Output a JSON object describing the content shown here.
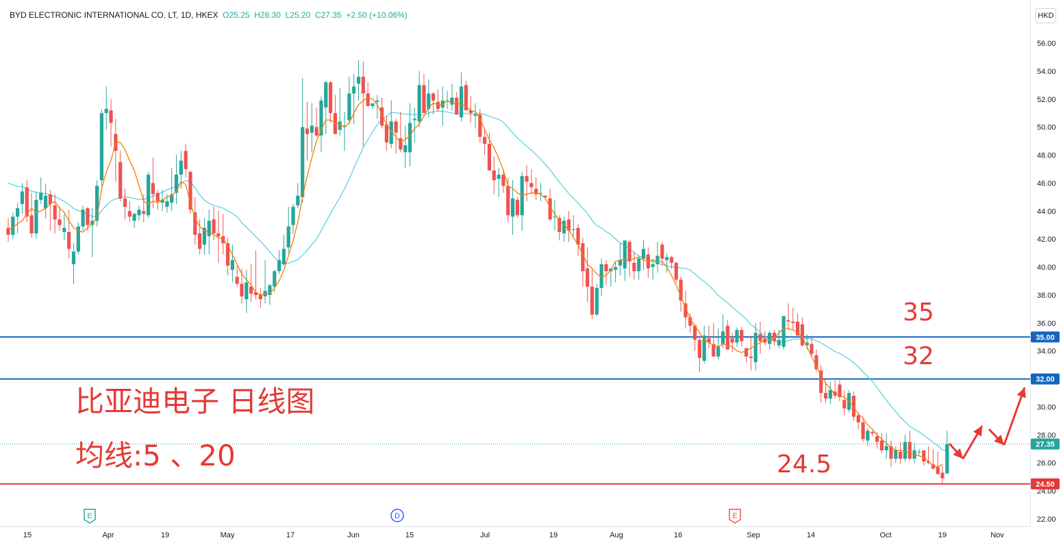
{
  "legend": {
    "symbol": "BYD ELECTRONIC INTERNATIONAL CO. LT, 1D, HKEX",
    "open": "O25.25",
    "high": "H28.30",
    "low": "L25.20",
    "close": "C27.35",
    "change": "+2.50 (+10.06%)"
  },
  "currency": "HKD",
  "colors": {
    "up": "#26a69a",
    "down": "#ef5350",
    "ma5": "#f57c00",
    "ma20": "#4dd0e1",
    "line_blue": "#1565c0",
    "line_red": "#e53935",
    "annotation": "#e53935",
    "last_price": "#1565c0"
  },
  "chart_data": {
    "type": "candlestick",
    "y_ticks": [
      "56.00",
      "54.00",
      "52.00",
      "50.00",
      "48.00",
      "46.00",
      "44.00",
      "42.00",
      "40.00",
      "38.00",
      "36.00",
      "34.00",
      "32.00",
      "30.00",
      "28.00",
      "26.00",
      "24.00",
      "22.00"
    ],
    "x_ticks": [
      "15",
      "Apr",
      "19",
      "May",
      "17",
      "Jun",
      "15",
      "Jul",
      "19",
      "Aug",
      "16",
      "Sep",
      "14",
      "Oct",
      "19",
      "Nov"
    ],
    "ylim": [
      22,
      56
    ],
    "ohlc": [
      [
        42.8,
        43.5,
        41.8,
        42.3
      ],
      [
        42.3,
        43.9,
        42,
        43.6
      ],
      [
        43.6,
        44.6,
        42.4,
        44.2
      ],
      [
        44.5,
        46,
        43.8,
        45.4
      ],
      [
        45.7,
        46.2,
        43.2,
        43.6
      ],
      [
        43.7,
        45.3,
        42.1,
        42.4
      ],
      [
        42.4,
        45.4,
        42,
        44.8
      ],
      [
        44.8,
        46.4,
        44.5,
        45.3
      ],
      [
        44.2,
        45.9,
        43.5,
        45.1
      ],
      [
        45.2,
        45.5,
        42.6,
        44.5
      ],
      [
        44.4,
        45.2,
        42.4,
        43.4
      ],
      [
        43.4,
        44.3,
        42.6,
        43
      ],
      [
        42.5,
        43.8,
        41.9,
        42.8
      ],
      [
        42.5,
        44.1,
        40.6,
        41.3
      ],
      [
        40.2,
        41.7,
        38.8,
        41.1
      ],
      [
        41.1,
        43.2,
        40.9,
        42.9
      ],
      [
        42.9,
        44.4,
        42.6,
        44.1
      ],
      [
        44.2,
        44.3,
        42.6,
        43
      ],
      [
        43,
        44.2,
        40.7,
        43.3
      ],
      [
        43.3,
        46.2,
        42.9,
        45.8
      ],
      [
        46.2,
        51.3,
        45.8,
        51
      ],
      [
        51,
        52.9,
        49.8,
        51.3
      ],
      [
        51.2,
        52,
        48.6,
        50.3
      ],
      [
        49.5,
        50.6,
        46.1,
        48.3
      ],
      [
        47.5,
        48.3,
        44.7,
        44.9
      ],
      [
        44.9,
        45.6,
        43.4,
        44.3
      ],
      [
        44,
        44.7,
        43.2,
        43.6
      ],
      [
        43.3,
        43.9,
        42.8,
        43.8
      ],
      [
        43.7,
        44.4,
        43.3,
        44.1
      ],
      [
        44,
        45.2,
        43.2,
        43.8
      ],
      [
        43.7,
        46.8,
        43.5,
        46.6
      ],
      [
        46,
        47.8,
        44.2,
        45.2
      ],
      [
        45.3,
        45.5,
        44.1,
        44.7
      ],
      [
        44.6,
        45.5,
        44,
        44.8
      ],
      [
        44.3,
        45.2,
        43.9,
        44.7
      ],
      [
        44.6,
        47.1,
        44,
        45.2
      ],
      [
        45.3,
        48,
        44.5,
        46.6
      ],
      [
        46.6,
        48.3,
        45.6,
        47.6
      ],
      [
        48.3,
        48.8,
        46.4,
        47
      ],
      [
        46.8,
        46.9,
        43.8,
        44.1
      ],
      [
        43.9,
        45,
        41.6,
        42.3
      ],
      [
        42.4,
        43.4,
        40.9,
        41.3
      ],
      [
        41.6,
        43.5,
        40.9,
        42.8
      ],
      [
        42.2,
        44.1,
        40.9,
        43.3
      ],
      [
        43.4,
        44.3,
        41.9,
        42.4
      ],
      [
        42.4,
        44,
        40.3,
        42.2
      ],
      [
        42.2,
        43.8,
        40.9,
        41.7
      ],
      [
        41.7,
        42.1,
        39.4,
        40.1
      ],
      [
        39.8,
        41.6,
        38.9,
        40.5
      ],
      [
        39.3,
        40.1,
        38.6,
        38.8
      ],
      [
        38.8,
        39.9,
        37.4,
        37.9
      ],
      [
        37.7,
        39.8,
        36.7,
        38.9
      ],
      [
        38.6,
        40.2,
        37.5,
        38.1
      ],
      [
        38.2,
        41.2,
        37.7,
        38
      ],
      [
        38,
        38.5,
        37.1,
        37.7
      ],
      [
        37.9,
        40.5,
        37.4,
        38.3
      ],
      [
        38,
        38.8,
        37.3,
        38.7
      ],
      [
        38.6,
        39.8,
        38.2,
        39.7
      ],
      [
        39.7,
        41.2,
        39.5,
        40.5
      ],
      [
        40.2,
        42.3,
        40.1,
        41.3
      ],
      [
        41.4,
        44.3,
        41,
        42.9
      ],
      [
        43,
        44.5,
        42.4,
        44.3
      ],
      [
        44.4,
        46,
        44.2,
        45.1
      ],
      [
        45,
        53.5,
        44.6,
        50
      ],
      [
        49.9,
        51.8,
        47.6,
        49.5
      ],
      [
        49.6,
        51.7,
        48.2,
        50.1
      ],
      [
        50,
        51.4,
        49.3,
        49.4
      ],
      [
        49.4,
        52.2,
        48.2,
        51.9
      ],
      [
        51.4,
        53.3,
        49.5,
        53.2
      ],
      [
        53.2,
        53.3,
        50.3,
        51
      ],
      [
        51,
        52.3,
        49.7,
        49.5
      ],
      [
        49.8,
        52.8,
        49.4,
        50.4
      ],
      [
        50,
        51.1,
        48.3,
        50.1
      ],
      [
        50.5,
        53.6,
        50.2,
        52.4
      ],
      [
        52.4,
        53.8,
        50.2,
        52.9
      ],
      [
        53.1,
        54.8,
        51.9,
        53.6
      ],
      [
        53.6,
        54.7,
        48.6,
        52.4
      ],
      [
        52.4,
        53.2,
        51.6,
        51.5
      ],
      [
        51.5,
        51.7,
        51.3,
        51.7
      ],
      [
        51.8,
        52.3,
        50.6,
        51.9
      ],
      [
        51.4,
        52.1,
        49.9,
        50.1
      ],
      [
        50.2,
        50.8,
        48.3,
        48.9
      ],
      [
        48.8,
        51.9,
        48.5,
        50.4
      ],
      [
        50.4,
        50.6,
        48.1,
        49.6
      ],
      [
        49.2,
        51.1,
        48.2,
        48.4
      ],
      [
        48.2,
        50.1,
        47.1,
        48.7
      ],
      [
        48.2,
        51.7,
        47.2,
        50.3
      ],
      [
        50.5,
        51.4,
        48.9,
        50.6
      ],
      [
        50.4,
        54,
        50,
        53
      ],
      [
        53,
        53.8,
        51.2,
        51
      ],
      [
        51.3,
        53.4,
        50.7,
        52.4
      ],
      [
        52.4,
        52.5,
        50.9,
        51.9
      ],
      [
        51.8,
        52.7,
        51.1,
        51.3
      ],
      [
        51.4,
        52.9,
        50.1,
        51.9
      ],
      [
        51.9,
        52.6,
        51.3,
        51.9
      ],
      [
        51.6,
        53.1,
        51.2,
        52.1
      ],
      [
        52.1,
        52.5,
        51.1,
        50.9
      ],
      [
        50.7,
        53.9,
        50.4,
        52.9
      ],
      [
        53,
        53.3,
        51.2,
        51.2
      ],
      [
        51.2,
        52.2,
        50.3,
        51
      ],
      [
        50.8,
        51.7,
        49.9,
        50.9
      ],
      [
        50.9,
        51.3,
        48.9,
        49.3
      ],
      [
        49.3,
        49.9,
        48,
        48.8
      ],
      [
        48.8,
        49.6,
        46.9,
        46.9
      ],
      [
        46.9,
        47.9,
        45.2,
        46.2
      ],
      [
        46.3,
        47.1,
        45,
        46.6
      ],
      [
        46.6,
        47,
        45.3,
        45.8
      ],
      [
        45.8,
        46.4,
        43.2,
        43.7
      ],
      [
        43.6,
        46.2,
        42.3,
        44.9
      ],
      [
        44.8,
        45,
        43.5,
        43.7
      ],
      [
        43.7,
        46.8,
        42.6,
        46.5
      ],
      [
        46.5,
        47.3,
        44.7,
        46.1
      ],
      [
        46,
        47,
        45.2,
        45.7
      ],
      [
        45.6,
        46.4,
        44.8,
        45.2
      ],
      [
        45.3,
        46,
        44.7,
        45.3
      ],
      [
        45.1,
        45.1,
        44.9,
        45
      ],
      [
        44.9,
        45.6,
        43.3,
        43.4
      ],
      [
        43.6,
        44.8,
        42.6,
        43.6
      ],
      [
        43.5,
        43.7,
        41.9,
        42.5
      ],
      [
        42.4,
        43.6,
        41.8,
        43.3
      ],
      [
        43.4,
        44,
        41.8,
        42.6
      ],
      [
        42.7,
        43.7,
        42.2,
        42.7
      ],
      [
        42.8,
        43.1,
        40.8,
        41.6
      ],
      [
        41.7,
        42.1,
        38.6,
        39.7
      ],
      [
        39.9,
        41.4,
        37.5,
        38.6
      ],
      [
        38.6,
        39.8,
        36.3,
        36.6
      ],
      [
        36.6,
        38.8,
        36.5,
        38.5
      ],
      [
        38.5,
        40.6,
        37.9,
        40.2
      ],
      [
        40.2,
        40.5,
        38.7,
        39.7
      ],
      [
        39.7,
        39.9,
        38.6,
        39.9
      ],
      [
        39.8,
        40.4,
        38.9,
        40
      ],
      [
        40.1,
        41.7,
        39.4,
        40.5
      ],
      [
        39.9,
        41.8,
        39,
        41.9
      ],
      [
        41.8,
        41.9,
        39.3,
        40.4
      ],
      [
        40.3,
        41.1,
        39.1,
        39.7
      ],
      [
        39.7,
        40.8,
        39.1,
        40.6
      ],
      [
        40.6,
        41.9,
        39.8,
        41.3
      ],
      [
        40.9,
        41.4,
        39.2,
        39.9
      ],
      [
        40,
        40.6,
        39.1,
        40.2
      ],
      [
        40.2,
        41.8,
        39.6,
        40.8
      ],
      [
        41.6,
        41.8,
        40.1,
        40.6
      ],
      [
        40.5,
        41,
        39.6,
        40.7
      ],
      [
        40.7,
        40.8,
        39.9,
        40.3
      ],
      [
        40.3,
        40.4,
        38.9,
        39.1
      ],
      [
        39.1,
        39.3,
        36.8,
        37.6
      ],
      [
        37.4,
        38.3,
        35.6,
        36.4
      ],
      [
        36.4,
        36.7,
        35.3,
        35.8
      ],
      [
        35.8,
        35.9,
        34,
        34.8
      ],
      [
        34.8,
        35.1,
        32.5,
        33.5
      ],
      [
        33.3,
        35.8,
        33.1,
        35.1
      ],
      [
        34.9,
        35.8,
        34.2,
        34.6
      ],
      [
        34.5,
        36,
        33.7,
        33.6
      ],
      [
        33.6,
        35.6,
        33.4,
        34.3
      ],
      [
        34.5,
        36.6,
        34.2,
        35.4
      ],
      [
        35.8,
        36.2,
        34.3,
        34.1
      ],
      [
        34.9,
        35.3,
        33.9,
        34.6
      ],
      [
        34.6,
        35.7,
        34.3,
        35.5
      ],
      [
        35.5,
        35.7,
        34.3,
        34.7
      ],
      [
        34.2,
        33.9,
        33.2,
        33.6
      ],
      [
        33.6,
        35.1,
        32.6,
        33.5
      ],
      [
        33.2,
        36,
        32.6,
        35.3
      ],
      [
        35.2,
        36.1,
        33.8,
        34.7
      ],
      [
        34.9,
        35.4,
        34.4,
        34.6
      ],
      [
        34.5,
        35.4,
        34.1,
        35.3
      ],
      [
        35.3,
        35.5,
        34.4,
        34.7
      ],
      [
        34.4,
        35.5,
        34.2,
        34.8
      ],
      [
        34.3,
        36.5,
        34.1,
        36.5
      ],
      [
        36.2,
        37.4,
        35.5,
        36.1
      ],
      [
        36.1,
        37.1,
        35.5,
        36
      ],
      [
        36.1,
        36.7,
        35.2,
        35.1
      ],
      [
        35.9,
        36.4,
        34.3,
        34.4
      ],
      [
        34.4,
        35.2,
        34.1,
        34.6
      ],
      [
        34.5,
        35.1,
        33.6,
        33.8
      ],
      [
        33.7,
        34.1,
        32.5,
        32.7
      ],
      [
        32.6,
        33,
        30.3,
        31
      ],
      [
        31,
        31.8,
        30.3,
        30.6
      ],
      [
        30.6,
        31.8,
        30.2,
        31.2
      ],
      [
        31.1,
        31.9,
        30.6,
        30.8
      ],
      [
        31.6,
        31.9,
        30.4,
        30.7
      ],
      [
        30.5,
        31.2,
        29.4,
        29.9
      ],
      [
        29.8,
        31.2,
        29.6,
        31
      ],
      [
        30.8,
        31.1,
        29,
        29.3
      ],
      [
        29.4,
        29.6,
        28.4,
        28.9
      ],
      [
        28.9,
        29.3,
        27.5,
        27.7
      ],
      [
        27.6,
        28.5,
        27.2,
        28.3
      ],
      [
        28.2,
        28.3,
        27.9,
        28.1
      ],
      [
        27.9,
        28.2,
        27,
        27.5
      ],
      [
        27.6,
        28.1,
        26.7,
        26.9
      ],
      [
        26.9,
        28.1,
        26.3,
        27.2
      ],
      [
        27.2,
        27.6,
        25.7,
        26.3
      ],
      [
        26.3,
        27.2,
        26,
        26.9
      ],
      [
        26.8,
        27.5,
        25.9,
        26.3
      ],
      [
        26.3,
        28,
        26.1,
        27.5
      ],
      [
        27.5,
        28.3,
        26.2,
        26.3
      ],
      [
        26.3,
        27.4,
        26,
        26.9
      ],
      [
        26.8,
        27,
        26.5,
        26.8
      ],
      [
        26.9,
        26.9,
        25.8,
        26.1
      ],
      [
        26.1,
        27.2,
        25.9,
        26
      ],
      [
        25.9,
        27,
        25.5,
        25.6
      ],
      [
        25.7,
        26.8,
        25.2,
        25.2
      ],
      [
        25.3,
        25.8,
        24.5,
        24.9
      ],
      [
        25.25,
        28.3,
        25.2,
        27.35
      ]
    ],
    "ma5": [
      42.7,
      42.8,
      43.1,
      43.3,
      43.8,
      44.2,
      43.9,
      44,
      44.2,
      44.5,
      44.7,
      44.2,
      43.9,
      43.3,
      42.8,
      42.6,
      42.5,
      42.8,
      43.1,
      43.5,
      45.6,
      46.8,
      47.6,
      48.9,
      48.9,
      48.4,
      47.6,
      46.9,
      45.8,
      44.7,
      44.5,
      44.7,
      44.6,
      44.8,
      45,
      45.1,
      45.4,
      46.1,
      45.9,
      44.6,
      43.5,
      42.9,
      42.6,
      42.5,
      42.3,
      42.1,
      42,
      41.5,
      40.9,
      40.2,
      39.5,
      39.1,
      38.7,
      38.2,
      38,
      38.1,
      38.1,
      38.5,
      39,
      39.8,
      40.8,
      41.9,
      43.2,
      45,
      46.5,
      47.8,
      49,
      49.8,
      50.5,
      50.5,
      50.3,
      50.2,
      50,
      50.3,
      51,
      51.6,
      51.9,
      52.1,
      52,
      51.6,
      50.9,
      50.2,
      49.7,
      49.3,
      48.9,
      49.1,
      49.4,
      49.9,
      50.2,
      50.8,
      51.4,
      51.7,
      51.6,
      51.6,
      51.9,
      51.7,
      51.7,
      51.6,
      51.5,
      51.2,
      51.1,
      50.6,
      49.8,
      49.1,
      48.5,
      47.8,
      46.9,
      45.8,
      45.6,
      45.3,
      45.1,
      45.2,
      45.3,
      45.3,
      45.2,
      44.9,
      44.3,
      43.8,
      43.3,
      43,
      42.7,
      42.1,
      41.6,
      40.9,
      40.2,
      39.9,
      39.5,
      39.3,
      39.4,
      39.8,
      40.4,
      40.5,
      40.5,
      40.5,
      40.6,
      40.7,
      40.5,
      40.4,
      40.5,
      40.4,
      40.4,
      40,
      39.4,
      38.7,
      37.9,
      37.1,
      36.3,
      35.8,
      35.3,
      34.8,
      34.6,
      34.4,
      34.3,
      34.5,
      34.4,
      34.3,
      34,
      33.9,
      34,
      34.2,
      34.4,
      34.6,
      34.8,
      34.8,
      34.9,
      35.3,
      35.6,
      35.6,
      35.5,
      35.3,
      35,
      34.3,
      33.6,
      32.9,
      32.3,
      31.7,
      31.3,
      30.9,
      30.8,
      30.7,
      30.4,
      30,
      29.5,
      29.2,
      28.7,
      28.4,
      28,
      27.7,
      27.4,
      27.1,
      26.9,
      26.9,
      26.8,
      26.7,
      26.6,
      26.5,
      26.4,
      26.1,
      25.8,
      25.7,
      25.9
    ]
  },
  "hlines": [
    {
      "label": "35.00",
      "value": 35.0
    },
    {
      "label": "32.00",
      "value": 32.0
    },
    {
      "label": "24.50",
      "value": 24.5
    }
  ],
  "last_price": {
    "label": "27.35",
    "value": 27.35
  },
  "annotations": {
    "title": "比亚迪电子 日线图",
    "ma_note": "均线:5 、20",
    "level_35": "35",
    "level_32": "32",
    "level_245": "24.5"
  },
  "event_markers": [
    "E",
    "D",
    "E"
  ]
}
